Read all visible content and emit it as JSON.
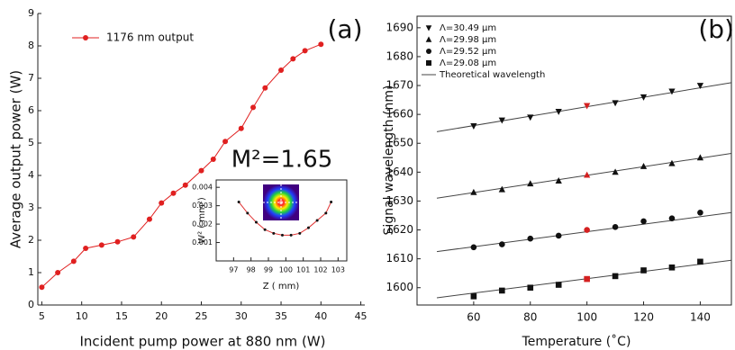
{
  "chart_data": [
    {
      "type": "line",
      "annotations": [
        "(a)",
        "M²=1.65"
      ],
      "xlabel": "Incident pump power at 880 nm (W)",
      "ylabel": "Average output power (W)",
      "xlim": [
        4.5,
        45.5
      ],
      "xticks": [
        5,
        10,
        15,
        20,
        25,
        30,
        35,
        40,
        45
      ],
      "ylim": [
        0,
        9
      ],
      "yticks": [
        0,
        1,
        2,
        3,
        4,
        5,
        6,
        7,
        8,
        9
      ],
      "box": false,
      "series": [
        {
          "name": "1176 nm output",
          "color": "#e02020",
          "marker_color": "#e02020",
          "x": [
            5,
            7,
            9,
            10.5,
            12.5,
            14.5,
            16.5,
            18.5,
            20,
            21.5,
            23,
            25,
            26.5,
            28,
            30,
            31.5,
            33,
            35,
            36.5,
            38,
            40
          ],
          "values": [
            0.55,
            1.0,
            1.35,
            1.75,
            1.85,
            1.95,
            2.1,
            2.65,
            3.15,
            3.45,
            3.7,
            4.15,
            4.5,
            5.05,
            5.45,
            6.1,
            6.7,
            7.25,
            7.6,
            7.85,
            8.05
          ]
        }
      ]
    },
    {
      "type": "line",
      "xlabel": "Z ( mm)",
      "ylabel": "W² ( mm²)",
      "xlim": [
        96,
        103.5
      ],
      "xticks": [
        97,
        98,
        99,
        100,
        101,
        102,
        103
      ],
      "ylim": [
        0,
        0.0044
      ],
      "yticks": [
        0.001,
        0.002,
        0.003,
        0.004
      ],
      "box": true,
      "series": [
        {
          "color": "#e03030",
          "marker_color": "#111111",
          "x": [
            97.3,
            97.8,
            98.3,
            98.8,
            99.3,
            99.8,
            100.3,
            100.8,
            101.3,
            101.8,
            102.3,
            102.6
          ],
          "values": [
            0.0032,
            0.0026,
            0.0021,
            0.0017,
            0.0015,
            0.0014,
            0.0014,
            0.0015,
            0.0018,
            0.0022,
            0.0026,
            0.0032
          ]
        }
      ]
    },
    {
      "type": "scatter",
      "annotations": [
        "(b)"
      ],
      "xlabel": "Temperature (˚C)",
      "ylabel": "Signal wavelength (nm)",
      "xlim": [
        40,
        151
      ],
      "xticks": [
        60,
        80,
        100,
        120,
        140
      ],
      "ylim": [
        1594,
        1694
      ],
      "yticks": [
        1600,
        1610,
        1620,
        1630,
        1640,
        1650,
        1660,
        1670,
        1680,
        1690
      ],
      "box": true,
      "highlight": {
        "index": 4,
        "color": "#d42020"
      },
      "series": [
        {
          "name": "Λ=30.49 μm",
          "marker": "triangle-down",
          "color": "#111111",
          "x": [
            60,
            70,
            80,
            90,
            100,
            110,
            120,
            130,
            140
          ],
          "values": [
            1656,
            1658,
            1659,
            1661,
            1663,
            1664,
            1666,
            1668,
            1670
          ]
        },
        {
          "name": "Λ=29.98 μm",
          "marker": "triangle-up",
          "color": "#111111",
          "x": [
            60,
            70,
            80,
            90,
            100,
            110,
            120,
            130,
            140
          ],
          "values": [
            1633,
            1634,
            1636,
            1637,
            1639,
            1640,
            1642,
            1643,
            1645
          ]
        },
        {
          "name": "Λ=29.52 μm",
          "marker": "circle",
          "color": "#111111",
          "x": [
            60,
            70,
            80,
            90,
            100,
            110,
            120,
            130,
            140
          ],
          "values": [
            1614,
            1615,
            1617,
            1618,
            1620,
            1621,
            1623,
            1624,
            1626
          ]
        },
        {
          "name": "Λ=29.08 μm",
          "marker": "square",
          "color": "#111111",
          "x": [
            60,
            70,
            80,
            90,
            100,
            110,
            120,
            130,
            140
          ],
          "values": [
            1597,
            1599,
            1600,
            1601,
            1603,
            1604,
            1606,
            1607,
            1609
          ]
        }
      ],
      "theory": {
        "name": "Theoretical wavelength",
        "color": "#444444",
        "x": [
          47,
          151
        ],
        "lines": [
          [
            1654,
            1671
          ],
          [
            1631,
            1646.5
          ],
          [
            1612.5,
            1626
          ],
          [
            1596.5,
            1609.5
          ]
        ]
      }
    }
  ]
}
